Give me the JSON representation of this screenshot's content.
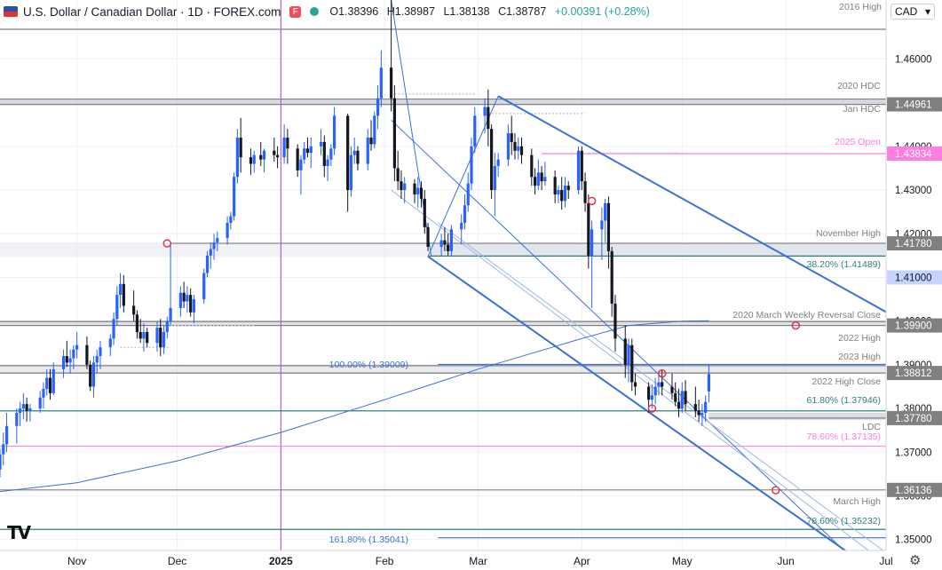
{
  "header": {
    "title": "U.S. Dollar / Canadian Dollar · 1D · FOREX.com",
    "ohlc": {
      "open": "O1.38396",
      "high": "H1.38987",
      "low": "L1.38138",
      "close": "C1.38787",
      "change": "+0.00391 (+0.28%)"
    },
    "currency": "CAD"
  },
  "colors": {
    "up": "#2962ff",
    "down": "#131722",
    "channel": "#3a70d8",
    "fib": "#2f7f7a",
    "pink": "#ff7ce0",
    "purple": "#b03cd9",
    "grey": "#808080"
  },
  "chart_data": {
    "type": "candlestick",
    "y_range": [
      1.3475,
      1.4735
    ],
    "x_range": [
      "2024-10-09",
      "2025-07-01"
    ],
    "x_ticks": [
      {
        "label": "Nov",
        "date": "2024-11-01"
      },
      {
        "label": "Dec",
        "date": "2024-12-01"
      },
      {
        "label": "2025",
        "date": "2025-01-01"
      },
      {
        "label": "Feb",
        "date": "2025-02-01"
      },
      {
        "label": "Mar",
        "date": "2025-03-01"
      },
      {
        "label": "Apr",
        "date": "2025-04-01"
      },
      {
        "label": "May",
        "date": "2025-05-01"
      },
      {
        "label": "Jun",
        "date": "2025-06-01"
      },
      {
        "label": "Jul",
        "date": "2025-07-01"
      }
    ],
    "y_ticks": [
      "1.35000",
      "1.36000",
      "1.37000",
      "1.38000",
      "1.39000",
      "1.40000",
      "1.41000",
      "1.42000",
      "1.43000",
      "1.44000",
      "1.45000",
      "1.46000"
    ],
    "price_labels": [
      {
        "text": "1.44961",
        "value": 1.44961,
        "bg": "#808080"
      },
      {
        "text": "1.43834",
        "value": 1.43834,
        "bg": "#ff7ce0"
      },
      {
        "text": "1.41780",
        "value": 1.4178,
        "bg": "#808080"
      },
      {
        "text": "1.41000",
        "value": 1.41,
        "bg": "#c7d3ff"
      },
      {
        "text": "1.39900",
        "value": 1.399,
        "bg": "#808080"
      },
      {
        "text": "1.38812",
        "value": 1.38812,
        "bg": "#808080"
      },
      {
        "text": "1.37780",
        "value": 1.3778,
        "bg": "#808080"
      },
      {
        "text": "1.36136",
        "value": 1.36136,
        "bg": "#808080"
      }
    ],
    "levels": [
      {
        "value": 1.4668,
        "label": "2016 High",
        "color": "#808080"
      },
      {
        "value": 1.4508,
        "label": "2020 HDC",
        "color": "#808080"
      },
      {
        "value": 1.44961,
        "label": "Jan HDC",
        "color": "#808080"
      },
      {
        "value": 1.43834,
        "label": "2025 Open",
        "color": "#ff7ce0"
      },
      {
        "value": 1.4178,
        "label": "November High",
        "color": "#808080"
      },
      {
        "value": 1.41489,
        "label": "38.20% (1.41489)",
        "color": "#2f7f7a"
      },
      {
        "value": 1.3999,
        "label": "2020 March Weekly Reversal Close",
        "color": "#808080"
      },
      {
        "value": 1.399,
        "label": "2022 High",
        "color": "#808080"
      },
      {
        "value": 1.3898,
        "label": "2023 High",
        "color": "#808080"
      },
      {
        "value": 1.38812,
        "label": "2022 High Close",
        "color": "#808080"
      },
      {
        "value": 1.37946,
        "label": "61.80% (1.37946)",
        "color": "#2f7f7a"
      },
      {
        "value": 1.3778,
        "label": "LDC",
        "color": "#808080"
      },
      {
        "value": 1.37135,
        "label": "78.60% (1.37135)",
        "color": "#ff7ce0"
      },
      {
        "value": 1.36136,
        "label": "March High",
        "color": "#808080"
      },
      {
        "value": 1.35232,
        "label": "78.60% (1.35232)",
        "color": "#2f7f7a"
      },
      {
        "value": 1.35041,
        "label": "161.80% (1.35041)",
        "color": "#3a70d8"
      },
      {
        "value": 1.39009,
        "label": "100.00% (1.39009)",
        "color": "#3a70d8"
      }
    ],
    "ohlc": [
      [
        "2024-10-09",
        1.366,
        1.3708,
        1.3642,
        1.3695
      ],
      [
        "2024-10-10",
        1.3695,
        1.3745,
        1.367,
        1.3718
      ],
      [
        "2024-10-11",
        1.3718,
        1.379,
        1.37,
        1.376
      ],
      [
        "2024-10-14",
        1.376,
        1.38,
        1.372,
        1.379
      ],
      [
        "2024-10-15",
        1.379,
        1.3815,
        1.376,
        1.38
      ],
      [
        "2024-10-16",
        1.38,
        1.3835,
        1.3775,
        1.381
      ],
      [
        "2024-10-17",
        1.381,
        1.3825,
        1.377,
        1.3795
      ],
      [
        "2024-10-18",
        1.3795,
        1.381,
        1.377,
        1.38
      ],
      [
        "2024-10-21",
        1.38,
        1.384,
        1.379,
        1.3825
      ],
      [
        "2024-10-22",
        1.3825,
        1.386,
        1.38,
        1.3845
      ],
      [
        "2024-10-23",
        1.3845,
        1.389,
        1.383,
        1.387
      ],
      [
        "2024-10-24",
        1.387,
        1.389,
        1.382,
        1.3835
      ],
      [
        "2024-10-25",
        1.3835,
        1.3905,
        1.383,
        1.389
      ],
      [
        "2024-10-28",
        1.389,
        1.3935,
        1.387,
        1.392
      ],
      [
        "2024-10-29",
        1.392,
        1.3955,
        1.3895,
        1.3905
      ],
      [
        "2024-10-30",
        1.3905,
        1.3935,
        1.388,
        1.3915
      ],
      [
        "2024-10-31",
        1.3915,
        1.3945,
        1.389,
        1.3935
      ],
      [
        "2024-11-01",
        1.3935,
        1.3975,
        1.3915,
        1.3945
      ],
      [
        "2024-11-04",
        1.3945,
        1.3965,
        1.389,
        1.39
      ],
      [
        "2024-11-05",
        1.39,
        1.391,
        1.384,
        1.385
      ],
      [
        "2024-11-06",
        1.385,
        1.392,
        1.3825,
        1.3905
      ],
      [
        "2024-11-07",
        1.3905,
        1.3935,
        1.388,
        1.392
      ],
      [
        "2024-11-08",
        1.392,
        1.3955,
        1.389,
        1.394
      ],
      [
        "2024-11-11",
        1.394,
        1.397,
        1.392,
        1.396
      ],
      [
        "2024-11-12",
        1.396,
        1.402,
        1.3945,
        1.4005
      ],
      [
        "2024-11-13",
        1.4005,
        1.408,
        1.399,
        1.406
      ],
      [
        "2024-11-14",
        1.406,
        1.411,
        1.403,
        1.4085
      ],
      [
        "2024-11-15",
        1.4085,
        1.4105,
        1.402,
        1.4035
      ],
      [
        "2024-11-18",
        1.4035,
        1.407,
        1.4,
        1.4015
      ],
      [
        "2024-11-19",
        1.4015,
        1.4025,
        1.396,
        1.3975
      ],
      [
        "2024-11-20",
        1.3975,
        1.4005,
        1.395,
        1.396
      ],
      [
        "2024-11-21",
        1.396,
        1.3995,
        1.393,
        1.3975
      ],
      [
        "2024-11-22",
        1.3975,
        1.3985,
        1.394,
        1.395
      ],
      [
        "2024-11-25",
        1.395,
        1.4,
        1.393,
        1.3985
      ],
      [
        "2024-11-26",
        1.3985,
        1.4005,
        1.392,
        1.394
      ],
      [
        "2024-11-27",
        1.394,
        1.399,
        1.3925,
        1.3975
      ],
      [
        "2024-11-28",
        1.3975,
        1.401,
        1.396,
        1.4
      ],
      [
        "2024-11-29",
        1.4,
        1.4178,
        1.399,
        1.403
      ],
      [
        "2024-12-02",
        1.403,
        1.408,
        1.401,
        1.4065
      ],
      [
        "2024-12-03",
        1.4065,
        1.409,
        1.403,
        1.4045
      ],
      [
        "2024-12-04",
        1.4045,
        1.408,
        1.402,
        1.406
      ],
      [
        "2024-12-05",
        1.406,
        1.4075,
        1.401,
        1.402
      ],
      [
        "2024-12-06",
        1.402,
        1.406,
        1.3995,
        1.405
      ],
      [
        "2024-12-09",
        1.405,
        1.412,
        1.404,
        1.411
      ],
      [
        "2024-12-10",
        1.411,
        1.416,
        1.41,
        1.415
      ],
      [
        "2024-12-11",
        1.415,
        1.418,
        1.412,
        1.4165
      ],
      [
        "2024-12-12",
        1.4165,
        1.42,
        1.414,
        1.418
      ],
      [
        "2024-12-13",
        1.418,
        1.4205,
        1.416,
        1.419
      ],
      [
        "2024-12-16",
        1.419,
        1.424,
        1.4175,
        1.4225
      ],
      [
        "2024-12-17",
        1.4225,
        1.425,
        1.421,
        1.424
      ],
      [
        "2024-12-18",
        1.424,
        1.434,
        1.423,
        1.433
      ],
      [
        "2024-12-19",
        1.433,
        1.444,
        1.4315,
        1.442
      ],
      [
        "2024-12-20",
        1.442,
        1.4465,
        1.434,
        1.4375
      ],
      [
        "2024-12-23",
        1.4375,
        1.4395,
        1.4335,
        1.436
      ],
      [
        "2024-12-24",
        1.436,
        1.439,
        1.434,
        1.438
      ],
      [
        "2024-12-26",
        1.438,
        1.441,
        1.4355,
        1.437
      ],
      [
        "2024-12-27",
        1.437,
        1.4395,
        1.434,
        1.439
      ],
      [
        "2024-12-30",
        1.439,
        1.442,
        1.4365,
        1.438
      ],
      [
        "2024-12-31",
        1.438,
        1.44,
        1.435,
        1.4375
      ],
      [
        "2025-01-02",
        1.4375,
        1.445,
        1.436,
        1.442
      ],
      [
        "2025-01-03",
        1.442,
        1.444,
        1.436,
        1.4395
      ],
      [
        "2025-01-06",
        1.4395,
        1.4405,
        1.433,
        1.4345
      ],
      [
        "2025-01-07",
        1.4345,
        1.438,
        1.429,
        1.437
      ],
      [
        "2025-01-08",
        1.437,
        1.441,
        1.436,
        1.4395
      ],
      [
        "2025-01-09",
        1.4395,
        1.442,
        1.4375,
        1.4385
      ],
      [
        "2025-01-10",
        1.4385,
        1.442,
        1.435,
        1.44
      ],
      [
        "2025-01-13",
        1.44,
        1.444,
        1.438,
        1.441
      ],
      [
        "2025-01-14",
        1.441,
        1.4425,
        1.433,
        1.4355
      ],
      [
        "2025-01-15",
        1.4355,
        1.438,
        1.432,
        1.437
      ],
      [
        "2025-01-16",
        1.437,
        1.4405,
        1.4355,
        1.4395
      ],
      [
        "2025-01-17",
        1.4395,
        1.449,
        1.438,
        1.447
      ],
      [
        "2025-01-21",
        1.447,
        1.4475,
        1.425,
        1.43
      ],
      [
        "2025-01-22",
        1.43,
        1.44,
        1.4285,
        1.438
      ],
      [
        "2025-01-23",
        1.438,
        1.442,
        1.436,
        1.439
      ],
      [
        "2025-01-24",
        1.439,
        1.44,
        1.4345,
        1.436
      ],
      [
        "2025-01-27",
        1.436,
        1.444,
        1.4345,
        1.442
      ],
      [
        "2025-01-28",
        1.442,
        1.446,
        1.439,
        1.4405
      ],
      [
        "2025-01-29",
        1.4405,
        1.448,
        1.4395,
        1.447
      ],
      [
        "2025-01-30",
        1.447,
        1.454,
        1.444,
        1.451
      ],
      [
        "2025-01-31",
        1.451,
        1.462,
        1.449,
        1.458
      ],
      [
        "2025-02-03",
        1.458,
        1.4795,
        1.448,
        1.451
      ],
      [
        "2025-02-04",
        1.451,
        1.454,
        1.432,
        1.435
      ],
      [
        "2025-02-05",
        1.435,
        1.439,
        1.43,
        1.432
      ],
      [
        "2025-02-06",
        1.432,
        1.4345,
        1.428,
        1.43
      ],
      [
        "2025-02-07",
        1.43,
        1.433,
        1.427,
        1.4315
      ],
      [
        "2025-02-10",
        1.4315,
        1.4325,
        1.427,
        1.429
      ],
      [
        "2025-02-11",
        1.429,
        1.433,
        1.426,
        1.4305
      ],
      [
        "2025-02-12",
        1.4305,
        1.432,
        1.426,
        1.428
      ],
      [
        "2025-02-13",
        1.428,
        1.43,
        1.42,
        1.4215
      ],
      [
        "2025-02-14",
        1.4215,
        1.4225,
        1.416,
        1.417
      ],
      [
        "2025-02-18",
        1.417,
        1.42,
        1.415,
        1.4185
      ],
      [
        "2025-02-19",
        1.4185,
        1.4215,
        1.416,
        1.4175
      ],
      [
        "2025-02-20",
        1.4175,
        1.42,
        1.415,
        1.416
      ],
      [
        "2025-02-21",
        1.416,
        1.422,
        1.415,
        1.421
      ],
      [
        "2025-02-24",
        1.421,
        1.4245,
        1.4175,
        1.4225
      ],
      [
        "2025-02-25",
        1.4225,
        1.429,
        1.421,
        1.4265
      ],
      [
        "2025-02-26",
        1.4265,
        1.434,
        1.425,
        1.4315
      ],
      [
        "2025-02-27",
        1.4315,
        1.442,
        1.43,
        1.44
      ],
      [
        "2025-02-28",
        1.44,
        1.449,
        1.4385,
        1.447
      ],
      [
        "2025-03-03",
        1.447,
        1.451,
        1.443,
        1.449
      ],
      [
        "2025-03-04",
        1.449,
        1.453,
        1.44,
        1.444
      ],
      [
        "2025-03-05",
        1.444,
        1.445,
        1.428,
        1.43
      ],
      [
        "2025-03-06",
        1.43,
        1.4385,
        1.424,
        1.4355
      ],
      [
        "2025-03-07",
        1.4355,
        1.4385,
        1.433,
        1.437
      ],
      [
        "2025-03-10",
        1.437,
        1.445,
        1.4355,
        1.443
      ],
      [
        "2025-03-11",
        1.443,
        1.447,
        1.438,
        1.441
      ],
      [
        "2025-03-12",
        1.441,
        1.443,
        1.437,
        1.439
      ],
      [
        "2025-03-13",
        1.439,
        1.442,
        1.437,
        1.44
      ],
      [
        "2025-03-14",
        1.44,
        1.442,
        1.436,
        1.438
      ],
      [
        "2025-03-17",
        1.438,
        1.4395,
        1.431,
        1.433
      ],
      [
        "2025-03-18",
        1.433,
        1.435,
        1.429,
        1.431
      ],
      [
        "2025-03-19",
        1.431,
        1.437,
        1.43,
        1.434
      ],
      [
        "2025-03-20",
        1.434,
        1.4355,
        1.43,
        1.432
      ],
      [
        "2025-03-21",
        1.432,
        1.4365,
        1.431,
        1.433
      ],
      [
        "2025-03-24",
        1.433,
        1.4345,
        1.427,
        1.429
      ],
      [
        "2025-03-25",
        1.429,
        1.431,
        1.427,
        1.43
      ],
      [
        "2025-03-26",
        1.43,
        1.433,
        1.4255,
        1.4275
      ],
      [
        "2025-03-27",
        1.4275,
        1.433,
        1.426,
        1.431
      ],
      [
        "2025-03-28",
        1.431,
        1.432,
        1.428,
        1.43
      ],
      [
        "2025-03-31",
        1.43,
        1.44,
        1.429,
        1.439
      ],
      [
        "2025-04-01",
        1.439,
        1.44,
        1.43,
        1.432
      ],
      [
        "2025-04-02",
        1.432,
        1.434,
        1.425,
        1.427
      ],
      [
        "2025-04-03",
        1.427,
        1.429,
        1.412,
        1.415
      ],
      [
        "2025-04-04",
        1.415,
        1.423,
        1.403,
        1.421
      ],
      [
        "2025-04-07",
        1.421,
        1.426,
        1.414,
        1.423
      ],
      [
        "2025-04-08",
        1.423,
        1.428,
        1.418,
        1.427
      ],
      [
        "2025-04-09",
        1.427,
        1.4285,
        1.412,
        1.416
      ],
      [
        "2025-04-10",
        1.416,
        1.417,
        1.401,
        1.404
      ],
      [
        "2025-04-11",
        1.404,
        1.406,
        1.393,
        1.396
      ],
      [
        "2025-04-14",
        1.396,
        1.399,
        1.387,
        1.39
      ],
      [
        "2025-04-15",
        1.39,
        1.396,
        1.386,
        1.3945
      ],
      [
        "2025-04-16",
        1.3945,
        1.396,
        1.384,
        1.386
      ],
      [
        "2025-04-17",
        1.386,
        1.388,
        1.383,
        1.385
      ],
      [
        "2025-04-21",
        1.385,
        1.386,
        1.379,
        1.382
      ],
      [
        "2025-04-22",
        1.382,
        1.3855,
        1.38,
        1.383
      ],
      [
        "2025-04-23",
        1.383,
        1.387,
        1.381,
        1.385
      ],
      [
        "2025-04-24",
        1.385,
        1.388,
        1.383,
        1.386
      ],
      [
        "2025-04-25",
        1.386,
        1.389,
        1.383,
        1.385
      ],
      [
        "2025-04-28",
        1.385,
        1.388,
        1.382,
        1.3835
      ],
      [
        "2025-04-29",
        1.3835,
        1.386,
        1.3805,
        1.3815
      ],
      [
        "2025-04-30",
        1.3815,
        1.3845,
        1.378,
        1.38
      ],
      [
        "2025-05-01",
        1.38,
        1.386,
        1.379,
        1.384
      ],
      [
        "2025-05-02",
        1.384,
        1.3865,
        1.3795,
        1.381
      ],
      [
        "2025-05-05",
        1.381,
        1.385,
        1.378,
        1.3795
      ],
      [
        "2025-05-06",
        1.3795,
        1.382,
        1.377,
        1.3785
      ],
      [
        "2025-05-07",
        1.3785,
        1.381,
        1.376,
        1.379
      ],
      [
        "2025-05-08",
        1.379,
        1.383,
        1.377,
        1.3815
      ],
      [
        "2025-05-09",
        1.3839,
        1.3899,
        1.3814,
        1.3879
      ]
    ]
  }
}
